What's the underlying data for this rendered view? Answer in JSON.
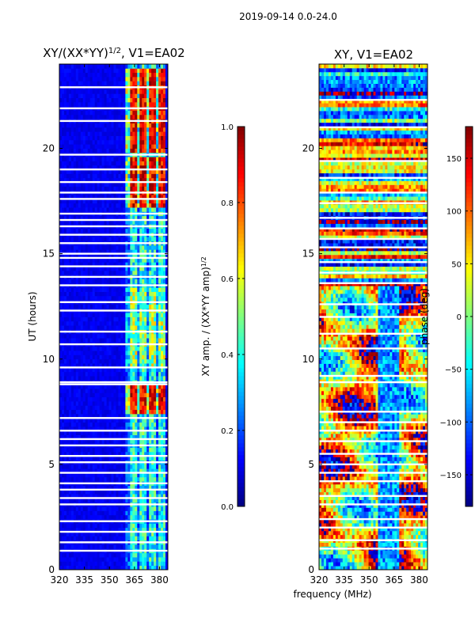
{
  "figure": {
    "suptitle": "2019-09-14 0.0-24.0",
    "shared_xlabel": "frequency (MHz)"
  },
  "chart_data": [
    {
      "type": "heatmap",
      "title_main": "XY/(XX*YY)",
      "title_sup": "1/2",
      "title_tail": ", V1=EA02",
      "xlabel": "",
      "ylabel": "UT (hours)",
      "xlim": [
        320,
        385
      ],
      "ylim": [
        0,
        24
      ],
      "xticks": [
        320,
        335,
        350,
        365,
        380
      ],
      "yticks": [
        0,
        5,
        10,
        15,
        20
      ],
      "colorbar": {
        "label_main": "XY amp. / (XX*YY amp)",
        "label_sup": "1/2",
        "range": [
          0.0,
          1.0
        ],
        "ticks": [
          "0.0",
          "0.2",
          "0.4",
          "0.6",
          "0.8",
          "1.0"
        ],
        "tick_values": [
          0.0,
          0.2,
          0.4,
          0.6,
          0.8,
          1.0
        ],
        "colormap": "jet"
      },
      "background_level": 0.08,
      "active_band_mhz": [
        360,
        383
      ],
      "active_channels_mhz": [
        364.5,
        370.5,
        376,
        381.5
      ],
      "strong_hours": [
        [
          7.3,
          8.8
        ],
        [
          17.3,
          19.5
        ],
        [
          19.8,
          23.8
        ]
      ],
      "moderate_hours": [
        [
          9.6,
          13.4
        ]
      ],
      "flagged_hours": [
        0.9,
        1.3,
        1.8,
        2.3,
        3.1,
        3.4,
        3.8,
        4.1,
        4.6,
        5.1,
        5.4,
        5.9,
        6.2,
        6.6,
        7.2,
        8.8,
        8.9,
        9.6,
        10.7,
        11.3,
        12.3,
        12.7,
        13.5,
        13.9,
        14.4,
        14.8,
        15.0,
        15.5,
        15.9,
        16.3,
        16.6,
        16.9,
        17.6,
        17.9,
        18.4,
        19.0,
        19.7,
        21.3,
        21.9,
        22.9
      ]
    },
    {
      "type": "heatmap",
      "title_main": "XY, V1=EA02",
      "xlabel": "frequency (MHz)",
      "ylabel": "",
      "xlim": [
        320,
        385
      ],
      "ylim": [
        0,
        24
      ],
      "xticks": [
        320,
        335,
        350,
        365,
        380
      ],
      "yticks": [
        0,
        5,
        10,
        15,
        20
      ],
      "colorbar": {
        "label_main": "phase (deg)",
        "range": [
          -180,
          180
        ],
        "ticks": [
          "−150",
          "−100",
          "−50",
          "0",
          "50",
          "100",
          "150"
        ],
        "tick_values": [
          -150,
          -100,
          -50,
          0,
          50,
          100,
          150
        ],
        "colormap": "jet"
      },
      "flagged_hours": [
        1.0,
        1.4,
        2.0,
        2.4,
        3.1,
        3.5,
        4.2,
        4.6,
        5.0,
        5.5,
        6.1,
        6.6,
        7.0,
        7.5,
        8.9,
        9.2,
        10.5,
        11.2,
        12.0,
        12.6,
        13.6,
        14.1,
        14.6,
        15.3,
        15.7,
        16.2,
        16.7,
        17.4,
        17.9,
        18.6,
        19.4,
        21.0,
        22.3
      ]
    }
  ]
}
